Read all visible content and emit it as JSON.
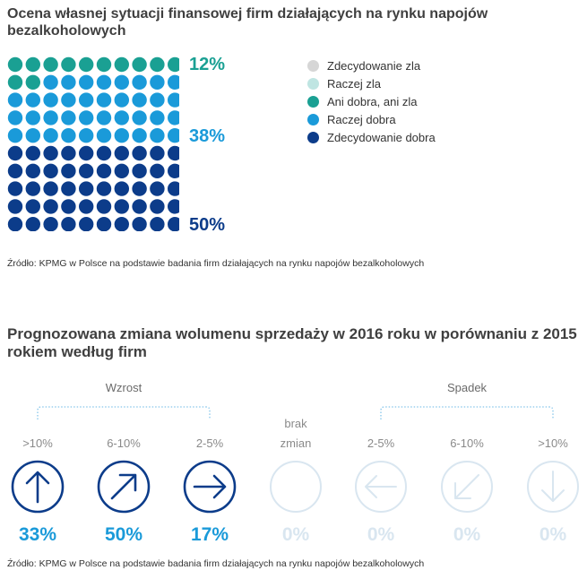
{
  "chart1": {
    "title": "Ocena własnej sytuacji finansowej firm działających na rynku napojów bezalkoholowych",
    "chart_data": {
      "type": "waffle",
      "title": "Ocena własnej sytuacji finansowej firm działających na rynku napojów bezalkoholowych",
      "categories": [
        "Zdecydowanie zla",
        "Raczej zla",
        "Ani dobra, ani zla",
        "Raczej dobra",
        "Zdecydowanie dobra"
      ],
      "values": [
        0,
        0,
        12,
        38,
        50
      ],
      "unit": "%"
    },
    "labels": {
      "ani": "12%",
      "raczej_dobra": "38%",
      "zdecydowanie_dobra": "50%"
    },
    "legend": [
      {
        "label": "Zdecydowanie zla",
        "color": "#d6d6d6"
      },
      {
        "label": "Raczej zla",
        "color": "#bfe5e2"
      },
      {
        "label": "Ani dobra, ani zla",
        "color": "#1aa093"
      },
      {
        "label": "Raczej dobra",
        "color": "#1a9ad9"
      },
      {
        "label": "Zdecydowanie dobra",
        "color": "#0c3c8a"
      }
    ],
    "label_colors": {
      "ani": "#1aa093",
      "raczej_dobra": "#1a9ad9",
      "zdecydowanie_dobra": "#0c3c8a"
    },
    "source": "Źródło: KPMG w Polsce na podstawie badania firm działających na rynku napojów bezalkoholowych"
  },
  "chart2": {
    "title": "Prognozowana zmiana wolumenu sprzedaży w 2016 roku w porównaniu z 2015 rokiem według firm",
    "group_growth": "Wzrost",
    "group_decline": "Spadek",
    "no_change_label": [
      "brak",
      "zmian"
    ],
    "chart_data": {
      "type": "pictogram",
      "title": "Prognozowana zmiana wolumenu sprzedaży w 2016 roku w porównaniu z 2015 rokiem według firm",
      "categories": [
        ">10%",
        "6-10%",
        "2-5%",
        "brak zmian",
        "2-5%",
        "6-10%",
        ">10%"
      ],
      "groups": [
        "Wzrost",
        "Wzrost",
        "Wzrost",
        "",
        "Spadek",
        "Spadek",
        "Spadek"
      ],
      "values": [
        33,
        50,
        17,
        0,
        0,
        0,
        0
      ],
      "value_labels": [
        "33%",
        "50%",
        "17%",
        "0%",
        "0%",
        "0%",
        "0%"
      ],
      "unit": "%"
    },
    "icons": [
      "arrow-up-icon",
      "arrow-up-right-icon",
      "arrow-right-icon",
      "empty-circle-icon",
      "arrow-left-icon",
      "arrow-down-left-icon",
      "arrow-down-icon"
    ],
    "colors": {
      "active_icon": "#0c3c8a",
      "active_value": "#1a9ad9",
      "inactive": "#d9e6f0",
      "bracket": "#86c5ea"
    },
    "source": "Źródło: KPMG w Polsce na podstawie badania firm działających na rynku napojów bezalkoholowych"
  }
}
